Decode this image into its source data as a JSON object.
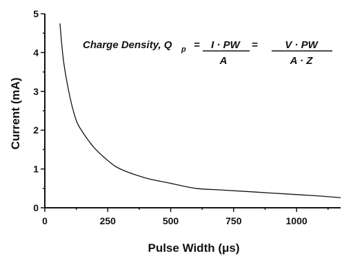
{
  "chart_data": {
    "type": "line",
    "title": "",
    "xlabel": "Pulse Width (μs)",
    "ylabel": "Current (mA)",
    "xlim": [
      0,
      1175
    ],
    "ylim": [
      0,
      5
    ],
    "x_ticks": [
      0,
      250,
      500,
      750,
      1000
    ],
    "x_tick_labels": [
      "0",
      "250",
      "500",
      "750",
      "1000"
    ],
    "y_ticks": [
      0,
      1,
      2,
      3,
      4,
      5
    ],
    "y_tick_labels": [
      "0",
      "1",
      "2",
      "3",
      "4",
      "5"
    ],
    "grid": false,
    "legend": "none",
    "series": [
      {
        "x": [
          60,
          75,
          100,
          125,
          150,
          175,
          200,
          250,
          300,
          400,
          500,
          600,
          700,
          800,
          900,
          1000,
          1100,
          1175
        ],
        "values": [
          4.75,
          3.75,
          2.85,
          2.25,
          1.95,
          1.72,
          1.52,
          1.22,
          1.0,
          0.77,
          0.63,
          0.5,
          0.46,
          0.42,
          0.38,
          0.34,
          0.3,
          0.26
        ],
        "color": "#111111"
      }
    ],
    "annotation": {
      "label": "Charge Density, Q",
      "subscript": "p",
      "eq1": "=",
      "num1": "I · PW",
      "den1": "A",
      "eq2": "=",
      "num2": "V · PW",
      "den2": "A · Z"
    }
  }
}
